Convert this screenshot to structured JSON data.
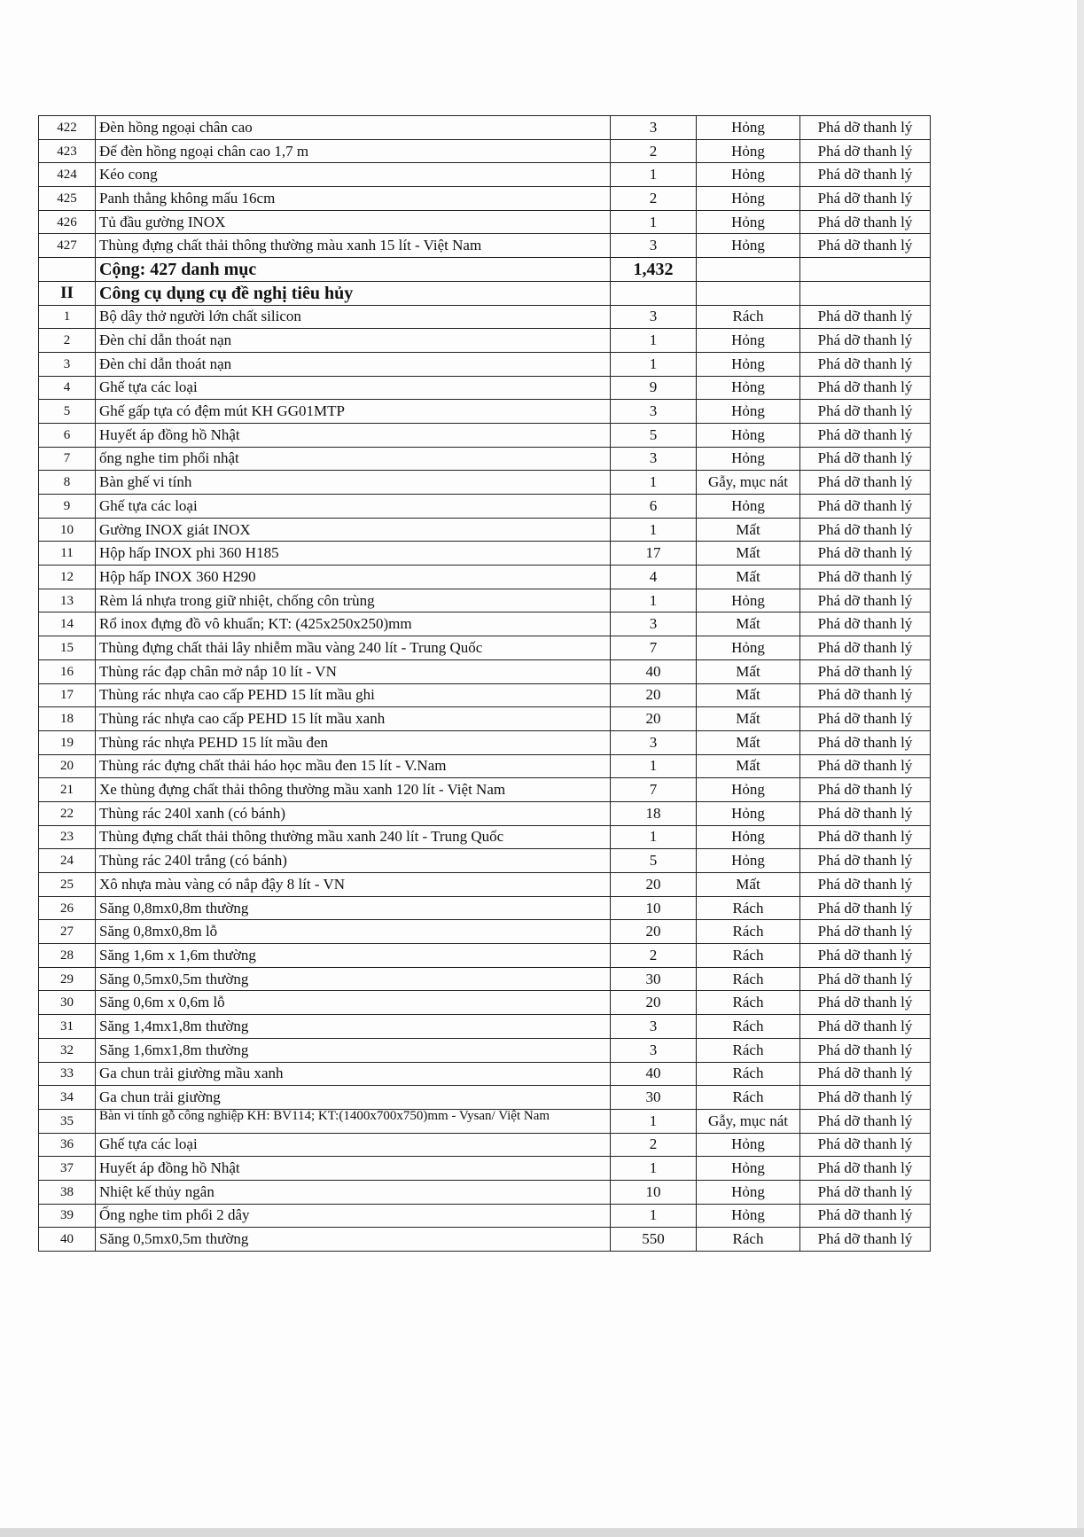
{
  "section_i_tail": [
    [
      "422",
      "Đèn hồng ngoại chân cao",
      "3",
      "Hỏng",
      "Phá dỡ thanh lý"
    ],
    [
      "423",
      "Đế đèn hồng ngoại chân cao 1,7 m",
      "2",
      "Hỏng",
      "Phá dỡ thanh lý"
    ],
    [
      "424",
      "Kéo cong",
      "1",
      "Hỏng",
      "Phá dỡ thanh lý"
    ],
    [
      "425",
      "Panh thẳng không mấu 16cm",
      "2",
      "Hỏng",
      "Phá dỡ thanh lý"
    ],
    [
      "426",
      "Tủ đầu gường INOX",
      "1",
      "Hỏng",
      "Phá dỡ thanh lý"
    ],
    [
      "427",
      "Thùng đựng chất thải thông thường màu xanh 15 lít - Việt Nam",
      "3",
      "Hỏng",
      "Phá dỡ thanh lý"
    ]
  ],
  "total": {
    "label": "Cộng: 427 danh mục",
    "quantity": "1,432"
  },
  "section_ii": {
    "number": "II",
    "title": "Công cụ dụng cụ đề nghị tiêu hủy"
  },
  "section_ii_rows": [
    [
      "1",
      "Bộ dây thở người lớn chất silicon",
      "3",
      "Rách",
      "Phá dỡ thanh lý"
    ],
    [
      "2",
      "Đèn chỉ dẫn thoát nạn",
      "1",
      "Hỏng",
      "Phá dỡ thanh lý"
    ],
    [
      "3",
      "Đèn chỉ dẫn thoát nạn",
      "1",
      "Hỏng",
      "Phá dỡ thanh lý"
    ],
    [
      "4",
      "Ghế tựa các loại",
      "9",
      "Hỏng",
      "Phá dỡ thanh lý"
    ],
    [
      "5",
      "Ghế gấp tựa có đệm mút  KH GG01MTP",
      "3",
      "Hỏng",
      "Phá dỡ thanh lý"
    ],
    [
      "6",
      "Huyết áp đồng hồ  Nhật",
      "5",
      "Hỏng",
      "Phá dỡ thanh lý"
    ],
    [
      "7",
      "ống nghe tim phổi nhật",
      "3",
      "Hỏng",
      "Phá dỡ thanh lý"
    ],
    [
      "8",
      "Bàn ghế vi tính",
      "1",
      "Gẫy, mục nát",
      "Phá dỡ thanh lý"
    ],
    [
      "9",
      "Ghế tựa các loại",
      "6",
      "Hỏng",
      "Phá dỡ thanh lý"
    ],
    [
      "10",
      "Gường INOX giát INOX",
      "1",
      "Mất",
      "Phá dỡ thanh lý"
    ],
    [
      "11",
      " Hộp hấp INOX phi 360 H185",
      "17",
      "Mất",
      "Phá dỡ thanh lý"
    ],
    [
      "12",
      "Hộp hấp INOX 360 H290",
      "4",
      "Mất",
      "Phá dỡ thanh lý"
    ],
    [
      "13",
      "Rèm lá nhựa trong giữ nhiệt, chống côn trùng",
      "1",
      "Hỏng",
      "Phá dỡ thanh lý"
    ],
    [
      "14",
      "Rổ inox đựng đồ vô khuẩn; KT: (425x250x250)mm",
      "3",
      "Mất",
      "Phá dỡ thanh lý"
    ],
    [
      "15",
      "Thùng đựng chất thải lây nhiễm mầu vàng 240 lít - Trung Quốc",
      "7",
      "Hỏng",
      "Phá dỡ thanh lý"
    ],
    [
      "16",
      "Thùng rác đạp chân mở nắp 10 lít - VN",
      "40",
      "Mất",
      "Phá dỡ thanh lý"
    ],
    [
      "17",
      "Thùng rác nhựa cao cấp PEHD 15 lít mầu ghi",
      "20",
      "Mất",
      "Phá dỡ thanh lý"
    ],
    [
      "18",
      "Thùng rác nhựa cao cấp PEHD 15 lít mầu xanh",
      "20",
      "Mất",
      "Phá dỡ thanh lý"
    ],
    [
      "19",
      "Thùng rác nhựa PEHD 15 lít mầu đen",
      "3",
      "Mất",
      "Phá dỡ thanh lý"
    ],
    [
      "20",
      "Thùng rác đựng chất thải háo học mầu đen 15 lít - V.Nam",
      "1",
      "Mất",
      "Phá dỡ thanh lý"
    ],
    [
      "21",
      "Xe thùng đựng chất thải thông thường mầu xanh 120 lít - Việt Nam",
      "7",
      "Hỏng",
      "Phá dỡ thanh lý"
    ],
    [
      "22",
      "Thùng rác 240l xanh (có bánh)",
      "18",
      "Hỏng",
      "Phá dỡ thanh lý"
    ],
    [
      "23",
      "Thùng đựng chất thải thông thường mầu xanh 240 lít - Trung Quốc",
      "1",
      "Hỏng",
      "Phá dỡ thanh lý"
    ],
    [
      "24",
      "Thùng rác 240l trắng (có bánh)",
      "5",
      "Hỏng",
      "Phá dỡ thanh lý"
    ],
    [
      "25",
      "Xô nhựa màu vàng có nắp đậy 8 lít  - VN",
      "20",
      "Mất",
      "Phá dỡ thanh lý"
    ],
    [
      "26",
      "Săng 0,8mx0,8m thường",
      "10",
      "Rách",
      "Phá dỡ thanh lý"
    ],
    [
      "27",
      "Săng 0,8mx0,8m  lỗ",
      "20",
      "Rách",
      "Phá dỡ thanh lý"
    ],
    [
      "28",
      "Săng 1,6m x 1,6m thường",
      "2",
      "Rách",
      "Phá dỡ thanh lý"
    ],
    [
      "29",
      "Săng 0,5mx0,5m thường",
      "30",
      "Rách",
      "Phá dỡ thanh lý"
    ],
    [
      "30",
      "Săng 0,6m x 0,6m  lỗ",
      "20",
      "Rách",
      "Phá dỡ thanh lý"
    ],
    [
      "31",
      "Săng 1,4mx1,8m thường",
      "3",
      "Rách",
      "Phá dỡ thanh lý"
    ],
    [
      "32",
      "Săng 1,6mx1,8m thường",
      "3",
      "Rách",
      "Phá dỡ thanh lý"
    ],
    [
      "33",
      "Ga chun trải giường mầu xanh",
      "40",
      "Rách",
      "Phá dỡ thanh lý"
    ],
    [
      "34",
      "Ga chun trải giường",
      "30",
      "Rách",
      "Phá dỡ thanh lý"
    ],
    [
      "35",
      "Bàn vi tính gỗ công nghiệp KH: BV114; KT:(1400x700x750)mm - Vysan/ Việt Nam",
      "1",
      "Gẫy, mục nát",
      "Phá dỡ thanh lý"
    ],
    [
      "36",
      "Ghế tựa các loại",
      "2",
      "Hỏng",
      "Phá dỡ thanh lý"
    ],
    [
      "37",
      "Huyết áp đồng hồ  Nhật",
      "1",
      "Hỏng",
      "Phá dỡ thanh lý"
    ],
    [
      "38",
      "Nhiệt kế thủy ngân",
      "10",
      "Hỏng",
      "Phá dỡ thanh lý"
    ],
    [
      "39",
      "Ống nghe tim phổi 2 dây",
      "1",
      "Hỏng",
      "Phá dỡ thanh lý"
    ],
    [
      "40",
      "Săng 0,5mx0,5m thường",
      "550",
      "Rách",
      "Phá dỡ thanh lý"
    ]
  ]
}
